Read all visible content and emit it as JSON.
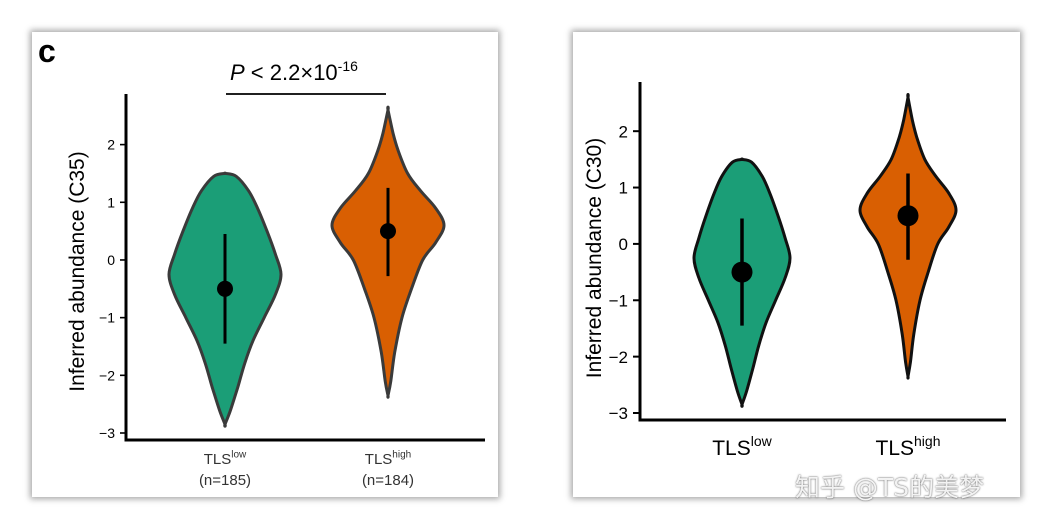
{
  "panel_label": "c",
  "significance": {
    "prefix": "P",
    "text": " < 2.2×10",
    "exponent": "-16"
  },
  "watermark": "知乎 @TS的美梦",
  "colors": {
    "low": "#1b9e77",
    "high": "#d95f02"
  },
  "chart_data": [
    {
      "type": "violin",
      "ylabel": "Inferred abundance (C35)",
      "ylim": [
        -3,
        2.6
      ],
      "yticks": [
        2,
        1,
        0,
        -1,
        -2,
        -3
      ],
      "grid": false,
      "categories": [
        {
          "base": "TLS",
          "sup": "low",
          "n": "(n=185)"
        },
        {
          "base": "TLS",
          "sup": "high",
          "n": "(n=184)"
        }
      ],
      "series": [
        {
          "median": -0.5,
          "whisker": [
            -1.45,
            0.45
          ],
          "min": -2.85,
          "max": 1.5,
          "density": [
            [
              -2.85,
              0.0
            ],
            [
              -2.6,
              0.1
            ],
            [
              -2.2,
              0.23
            ],
            [
              -1.8,
              0.35
            ],
            [
              -1.4,
              0.5
            ],
            [
              -1.0,
              0.7
            ],
            [
              -0.6,
              0.9
            ],
            [
              -0.25,
              1.0
            ],
            [
              0.1,
              0.9
            ],
            [
              0.5,
              0.75
            ],
            [
              0.9,
              0.58
            ],
            [
              1.2,
              0.42
            ],
            [
              1.45,
              0.2
            ],
            [
              1.5,
              0.0
            ]
          ]
        },
        {
          "median": 0.5,
          "whisker": [
            -0.28,
            1.25
          ],
          "min": -2.35,
          "max": 2.6,
          "density": [
            [
              -2.35,
              0.0
            ],
            [
              -2.1,
              0.05
            ],
            [
              -1.6,
              0.12
            ],
            [
              -1.0,
              0.25
            ],
            [
              -0.5,
              0.42
            ],
            [
              0.0,
              0.62
            ],
            [
              0.3,
              0.85
            ],
            [
              0.6,
              1.0
            ],
            [
              0.9,
              0.85
            ],
            [
              1.2,
              0.58
            ],
            [
              1.5,
              0.35
            ],
            [
              1.9,
              0.18
            ],
            [
              2.2,
              0.09
            ],
            [
              2.6,
              0.0
            ]
          ]
        }
      ]
    },
    {
      "type": "violin",
      "ylabel": "Inferred abundance (C30)",
      "ylim": [
        -3,
        2.5
      ],
      "yticks": [
        2,
        1,
        0,
        -1,
        -2,
        -3
      ],
      "grid": false,
      "categories": [
        {
          "base": "TLS",
          "sup": "low",
          "n": ""
        },
        {
          "base": "TLS",
          "sup": "high",
          "n": ""
        }
      ],
      "series": [
        {
          "median": -0.5,
          "whisker": [
            -1.45,
            0.45
          ],
          "min": -2.85,
          "max": 1.5,
          "density": [
            [
              -2.85,
              0.0
            ],
            [
              -2.6,
              0.1
            ],
            [
              -2.2,
              0.23
            ],
            [
              -1.8,
              0.35
            ],
            [
              -1.4,
              0.5
            ],
            [
              -1.0,
              0.7
            ],
            [
              -0.6,
              0.9
            ],
            [
              -0.25,
              1.0
            ],
            [
              0.1,
              0.9
            ],
            [
              0.5,
              0.75
            ],
            [
              0.9,
              0.58
            ],
            [
              1.2,
              0.42
            ],
            [
              1.45,
              0.2
            ],
            [
              1.5,
              0.0
            ]
          ]
        },
        {
          "median": 0.5,
          "whisker": [
            -0.28,
            1.25
          ],
          "min": -2.35,
          "max": 2.6,
          "density": [
            [
              -2.35,
              0.0
            ],
            [
              -2.1,
              0.05
            ],
            [
              -1.6,
              0.12
            ],
            [
              -1.0,
              0.25
            ],
            [
              -0.5,
              0.42
            ],
            [
              0.0,
              0.62
            ],
            [
              0.3,
              0.85
            ],
            [
              0.6,
              1.0
            ],
            [
              0.9,
              0.85
            ],
            [
              1.2,
              0.58
            ],
            [
              1.5,
              0.35
            ],
            [
              1.9,
              0.18
            ],
            [
              2.2,
              0.09
            ],
            [
              2.6,
              0.0
            ]
          ]
        }
      ]
    }
  ]
}
